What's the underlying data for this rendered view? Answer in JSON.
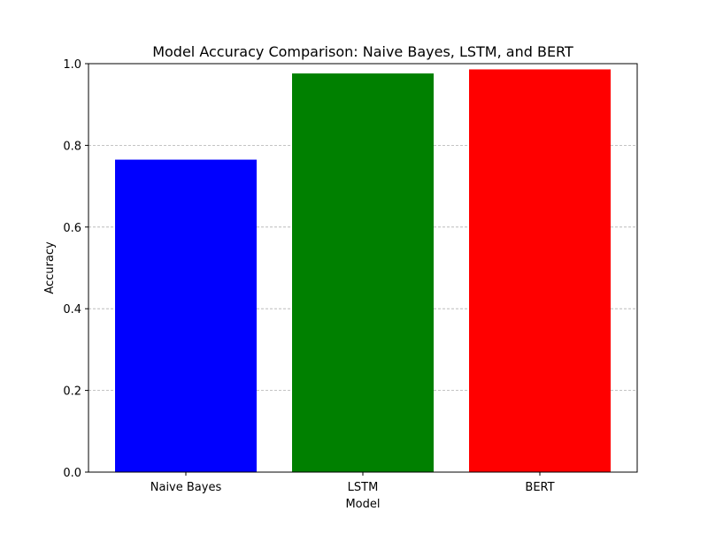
{
  "chart_data": {
    "type": "bar",
    "title": "Model Accuracy Comparison: Naive Bayes, LSTM, and BERT",
    "xlabel": "Model",
    "ylabel": "Accuracy",
    "categories": [
      "Naive Bayes",
      "LSTM",
      "BERT"
    ],
    "values": [
      0.765,
      0.976,
      0.986
    ],
    "colors": [
      "#0000ff",
      "#008000",
      "#ff0000"
    ],
    "ylim": [
      0,
      1.0
    ],
    "yticks": [
      "0.0",
      "0.2",
      "0.4",
      "0.6",
      "0.8",
      "1.0"
    ],
    "grid": "y-axis, dashed",
    "legend": "none"
  }
}
